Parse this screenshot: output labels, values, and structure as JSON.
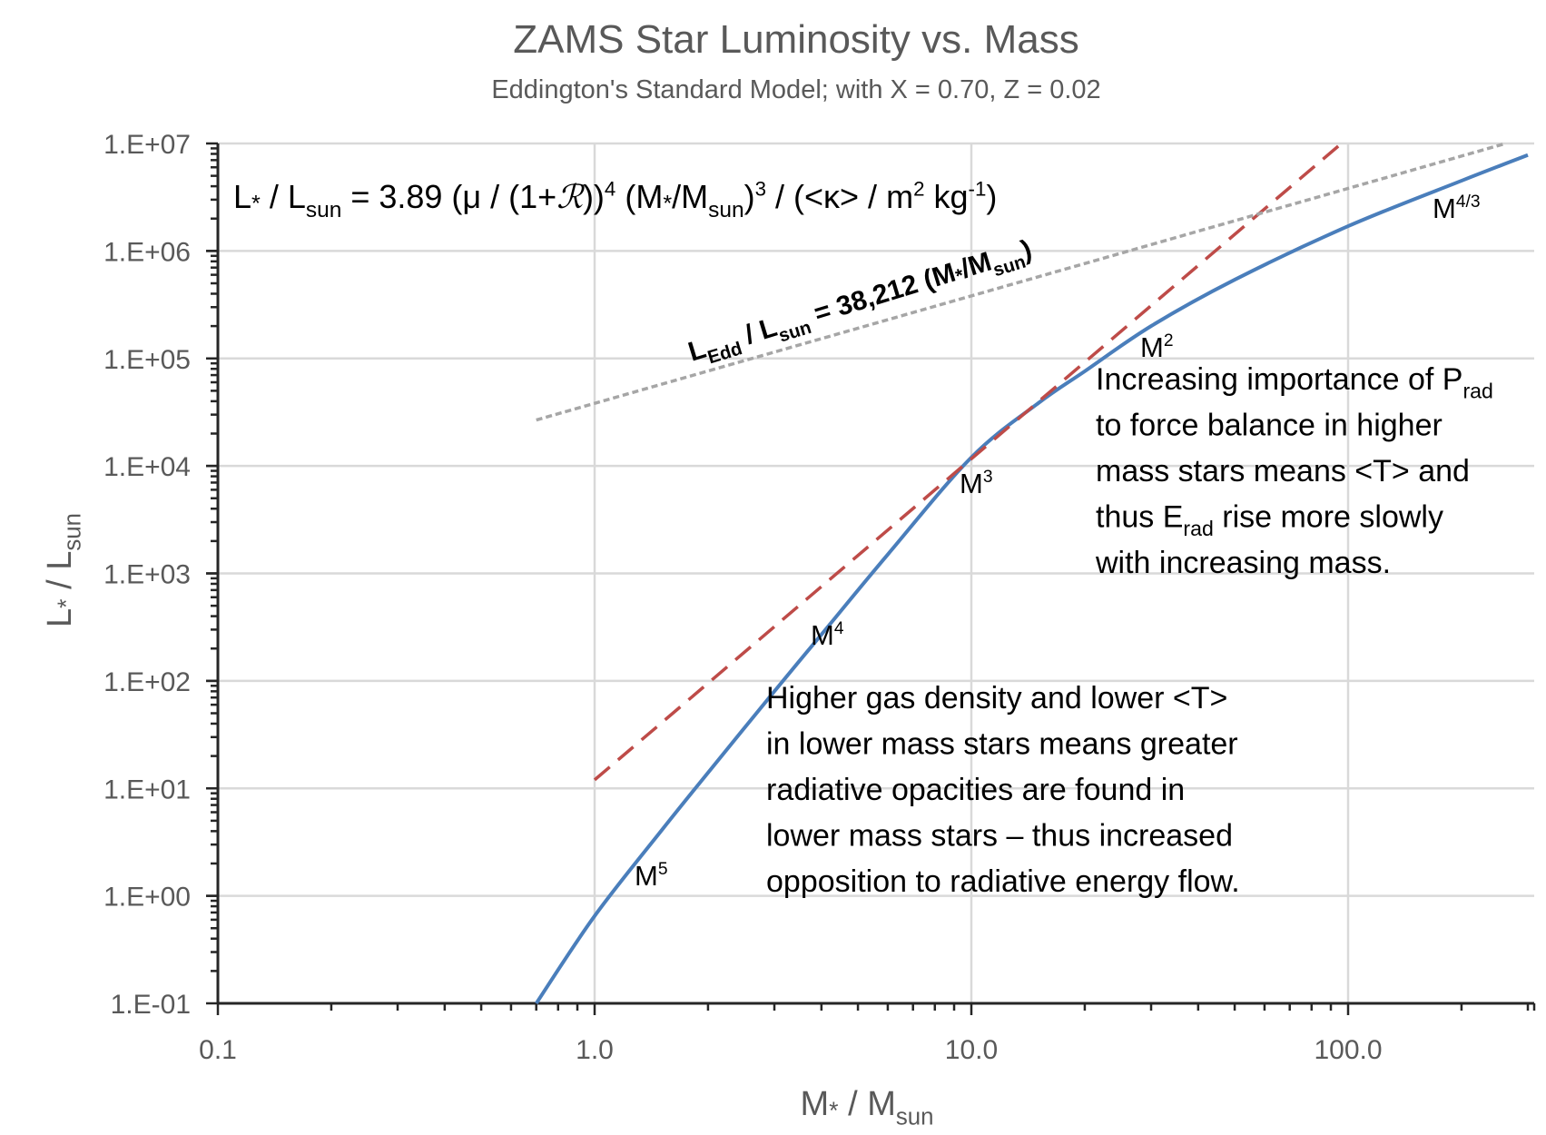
{
  "chart_data": {
    "type": "line",
    "title": "ZAMS Star Luminosity vs. Mass",
    "subtitle": "Eddington's Standard Model; with X = 0.70, Z = 0.02",
    "xlabel": [
      {
        "t": "M"
      },
      {
        "t": "*",
        "s": "star"
      },
      {
        "t": " / M"
      },
      {
        "t": "sun",
        "s": "sub"
      }
    ],
    "ylabel": [
      {
        "t": "L"
      },
      {
        "t": "*",
        "s": "star"
      },
      {
        "t": " / L"
      },
      {
        "t": "sun",
        "s": "sub"
      }
    ],
    "x_scale": "log",
    "y_scale": "log",
    "xlim": [
      0.1,
      300
    ],
    "ylim": [
      0.1,
      10000000
    ],
    "grid": true,
    "x_ticks": [
      0.1,
      1,
      10,
      100
    ],
    "x_tick_labels": [
      "0.1",
      "1.0",
      "10.0",
      "100.0"
    ],
    "y_ticks": [
      0.1,
      1,
      10,
      100,
      1000,
      10000,
      100000,
      1000000,
      10000000
    ],
    "y_tick_labels": [
      "1.E-01",
      "1.E+00",
      "1.E+01",
      "1.E+02",
      "1.E+03",
      "1.E+04",
      "1.E+05",
      "1.E+06",
      "1.E+07"
    ],
    "series": [
      {
        "style": "solid",
        "color": "#4a7ebb",
        "x": [
          0.7,
          1,
          1.5,
          2,
          3,
          4,
          6,
          10,
          15,
          20,
          30,
          50,
          100,
          200,
          300
        ],
        "y": [
          0.1,
          0.65,
          4,
          14,
          80,
          270,
          1500,
          12000,
          38000,
          76000,
          200000,
          540000,
          1700000,
          4500000,
          7800000
        ]
      },
      {
        "style": "dashed",
        "color": "#be4b48",
        "x": [
          1,
          96
        ],
        "y": [
          12,
          10000000
        ]
      },
      {
        "style": "dotted",
        "color": "#a6a6a6",
        "x": [
          0.7,
          262
        ],
        "y": [
          26748,
          10000000
        ]
      }
    ],
    "annotations": {
      "formula": [
        {
          "t": "L"
        },
        {
          "t": "*",
          "s": "star"
        },
        {
          "t": " / L"
        },
        {
          "t": "sun",
          "s": "sub"
        },
        {
          "t": " = 3.89 (μ / (1+"
        },
        {
          "t": "ℛ",
          "s": "script"
        },
        {
          "t": "))"
        },
        {
          "t": "4",
          "s": "sup"
        },
        {
          "t": " (M"
        },
        {
          "t": "*",
          "s": "star"
        },
        {
          "t": "/M"
        },
        {
          "t": "sun",
          "s": "sub"
        },
        {
          "t": ")"
        },
        {
          "t": "3",
          "s": "sup"
        },
        {
          "t": " / (<κ> / m"
        },
        {
          "t": "2",
          "s": "sup"
        },
        {
          "t": " kg"
        },
        {
          "t": "-1",
          "s": "sup"
        },
        {
          "t": ")"
        }
      ],
      "eddington": [
        {
          "t": "L"
        },
        {
          "t": "Edd",
          "s": "sub"
        },
        {
          "t": " / L"
        },
        {
          "t": "sun",
          "s": "sub"
        },
        {
          "t": " = 38,212 (M"
        },
        {
          "t": "*",
          "s": "star"
        },
        {
          "t": "/M"
        },
        {
          "t": "sun",
          "s": "sub"
        },
        {
          "t": ")"
        }
      ],
      "m5": [
        {
          "t": "M"
        },
        {
          "t": "5",
          "s": "sup"
        }
      ],
      "m4": [
        {
          "t": "M"
        },
        {
          "t": "4",
          "s": "sup"
        }
      ],
      "m3": [
        {
          "t": "M"
        },
        {
          "t": "3",
          "s": "sup"
        }
      ],
      "m2": [
        {
          "t": "M"
        },
        {
          "t": "2",
          "s": "sup"
        }
      ],
      "m43": [
        {
          "t": "M"
        },
        {
          "t": "4/3",
          "s": "sup"
        }
      ],
      "high_mass_note": [
        [
          {
            "t": "Increasing importance of P"
          },
          {
            "t": "rad",
            "s": "sub"
          }
        ],
        [
          {
            "t": "to force balance in higher"
          }
        ],
        [
          {
            "t": "mass stars means <T> and"
          }
        ],
        [
          {
            "t": "thus E"
          },
          {
            "t": "rad",
            "s": "sub"
          },
          {
            "t": " rise more slowly"
          }
        ],
        [
          {
            "t": "with increasing mass."
          }
        ]
      ],
      "low_mass_note": [
        [
          {
            "t": "Higher gas density and lower <T>"
          }
        ],
        [
          {
            "t": "in lower mass stars means greater"
          }
        ],
        [
          {
            "t": "radiative opacities are found in"
          }
        ],
        [
          {
            "t": "lower mass stars –  thus increased"
          }
        ],
        [
          {
            "t": "opposition to radiative energy flow."
          }
        ]
      ]
    }
  }
}
